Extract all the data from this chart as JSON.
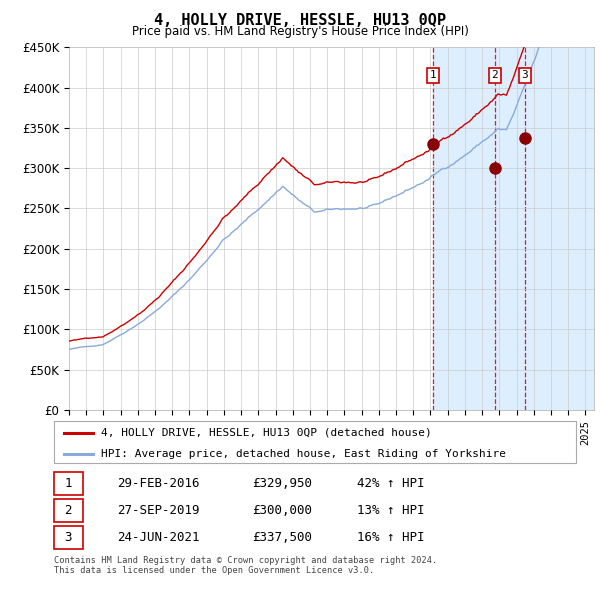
{
  "title": "4, HOLLY DRIVE, HESSLE, HU13 0QP",
  "subtitle": "Price paid vs. HM Land Registry's House Price Index (HPI)",
  "footer_line1": "Contains HM Land Registry data © Crown copyright and database right 2024.",
  "footer_line2": "This data is licensed under the Open Government Licence v3.0.",
  "legend_line1": "4, HOLLY DRIVE, HESSLE, HU13 0QP (detached house)",
  "legend_line2": "HPI: Average price, detached house, East Riding of Yorkshire",
  "sale_color": "#cc0000",
  "hpi_color": "#88aadd",
  "shade_color": "#ddeeff",
  "ylim": [
    0,
    450000
  ],
  "yticks": [
    0,
    50000,
    100000,
    150000,
    200000,
    250000,
    300000,
    350000,
    400000,
    450000
  ],
  "xlim": [
    1995,
    2025.5
  ],
  "sales": [
    {
      "label": "1",
      "date": "29-FEB-2016",
      "price": 329950,
      "pct": "42%",
      "x": 2016.16
    },
    {
      "label": "2",
      "date": "27-SEP-2019",
      "price": 300000,
      "pct": "13%",
      "x": 2019.74
    },
    {
      "label": "3",
      "date": "24-JUN-2021",
      "price": 337500,
      "pct": "16%",
      "x": 2021.48
    }
  ],
  "table_rows": [
    [
      "1",
      "29-FEB-2016",
      "£329,950",
      "42% ↑ HPI"
    ],
    [
      "2",
      "27-SEP-2019",
      "£300,000",
      "13% ↑ HPI"
    ],
    [
      "3",
      "24-JUN-2021",
      "£337,500",
      "16% ↑ HPI"
    ]
  ]
}
